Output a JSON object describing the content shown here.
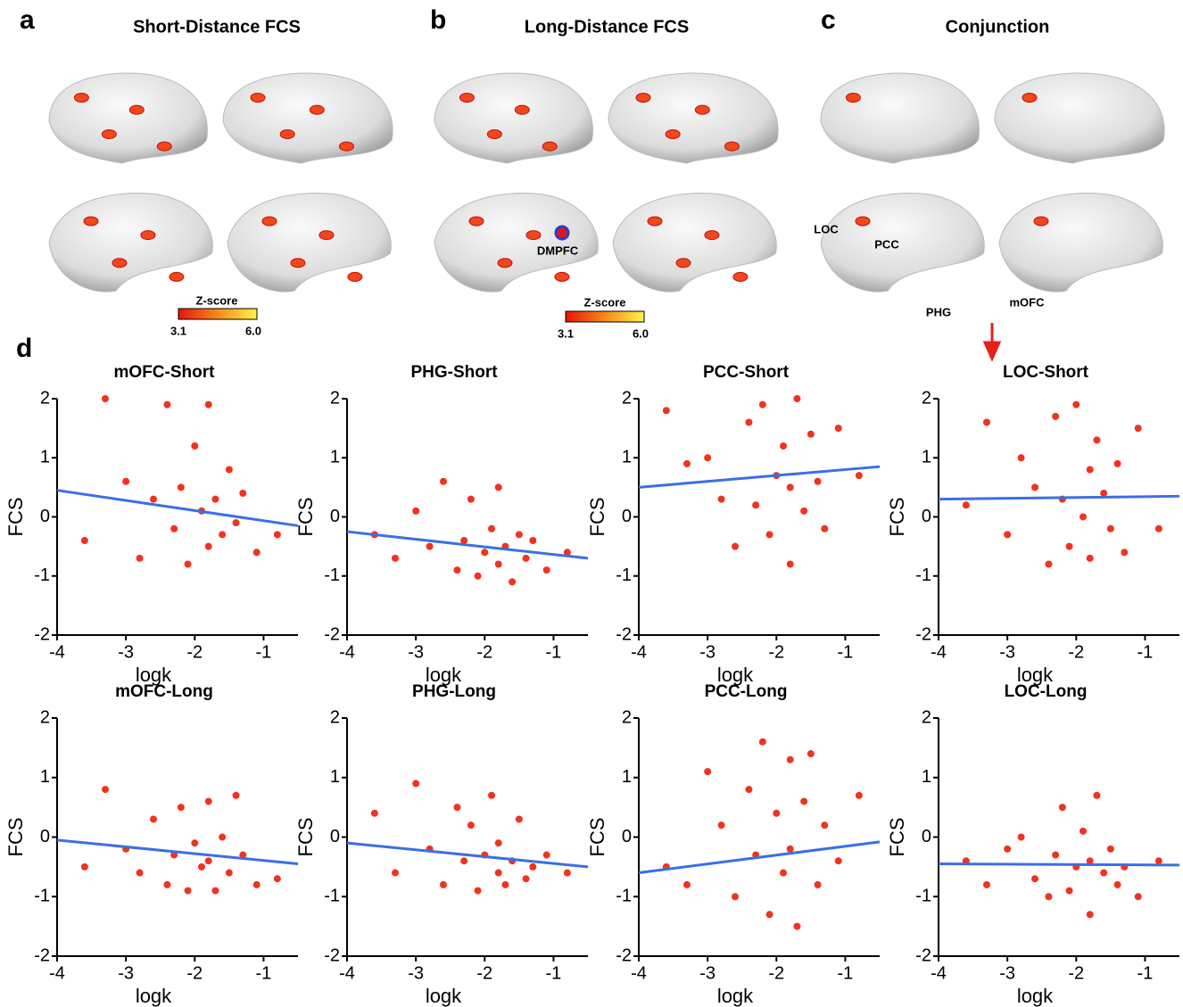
{
  "panels": [
    {
      "letter": "a",
      "title": "Short-Distance FCS",
      "colorbar": {
        "label": "Z-score",
        "ticks": [
          3.1,
          {
            "value": 6,
            "label": "6.0"
          }
        ]
      }
    },
    {
      "letter": "b",
      "title": "Long-Distance FCS",
      "colorbar": {
        "label": "Z-score",
        "ticks": [
          3.1,
          {
            "value": 6,
            "label": "6.0"
          }
        ]
      }
    },
    {
      "letter": "c",
      "title": "Conjunction"
    }
  ],
  "panel_d_letter": "d",
  "regions": [
    "DMPFC",
    "LOC",
    "PCC",
    "PHG",
    "mOFC"
  ],
  "chart_data": [
    {
      "type": "scatter",
      "title": "mOFC-Short",
      "x_label": "logk",
      "y_label": "FCS",
      "xlim": [
        -4,
        -0.5
      ],
      "ylim": [
        -2,
        2
      ],
      "xticks": [
        -4,
        -3,
        -2,
        -1
      ],
      "yticks": [
        -2,
        -1,
        0,
        1,
        2
      ],
      "points": {
        "color": "#f2321c",
        "x": [
          -3.6,
          -3.3,
          -3.0,
          -2.8,
          -2.6,
          -2.4,
          -2.3,
          -2.2,
          -2.1,
          -2.0,
          -1.9,
          -1.8,
          -1.8,
          -1.7,
          -1.6,
          -1.5,
          -1.4,
          -1.3,
          -1.1,
          -0.8
        ],
        "y": [
          -0.4,
          2.0,
          0.6,
          -0.7,
          0.3,
          1.9,
          -0.2,
          0.5,
          -0.8,
          1.2,
          0.1,
          -0.5,
          1.9,
          0.3,
          -0.3,
          0.8,
          -0.1,
          0.4,
          -0.6,
          -0.3
        ]
      },
      "fit": {
        "color": "#3a6fe6",
        "x": [
          -4,
          -0.5
        ],
        "y": [
          0.45,
          -0.15
        ]
      }
    },
    {
      "type": "scatter",
      "title": "PHG-Short",
      "x_label": "logk",
      "y_label": "FCS",
      "xlim": [
        -4,
        -0.5
      ],
      "ylim": [
        -2,
        2
      ],
      "xticks": [
        -4,
        -3,
        -2,
        -1
      ],
      "yticks": [
        -2,
        -1,
        0,
        1,
        2
      ],
      "points": {
        "color": "#f2321c",
        "x": [
          -3.6,
          -3.3,
          -3.0,
          -2.8,
          -2.6,
          -2.4,
          -2.3,
          -2.2,
          -2.1,
          -2.0,
          -1.9,
          -1.8,
          -1.8,
          -1.7,
          -1.6,
          -1.5,
          -1.4,
          -1.3,
          -1.1,
          -0.8
        ],
        "y": [
          -0.3,
          -0.7,
          0.1,
          -0.5,
          0.6,
          -0.9,
          -0.4,
          0.3,
          -1.0,
          -0.6,
          -0.2,
          -0.8,
          0.5,
          -0.5,
          -1.1,
          -0.3,
          -0.7,
          -0.4,
          -0.9,
          -0.6
        ]
      },
      "fit": {
        "color": "#3a6fe6",
        "x": [
          -4,
          -0.5
        ],
        "y": [
          -0.25,
          -0.7
        ]
      }
    },
    {
      "type": "scatter",
      "title": "PCC-Short",
      "x_label": "logk",
      "y_label": "FCS",
      "xlim": [
        -4,
        -0.5
      ],
      "ylim": [
        -2,
        2
      ],
      "xticks": [
        -4,
        -3,
        -2,
        -1
      ],
      "yticks": [
        -2,
        -1,
        0,
        1,
        2
      ],
      "points": {
        "color": "#f2321c",
        "x": [
          -3.6,
          -3.3,
          -3.0,
          -2.8,
          -2.6,
          -2.4,
          -2.3,
          -2.2,
          -2.1,
          -2.0,
          -1.9,
          -1.8,
          -1.8,
          -1.7,
          -1.6,
          -1.5,
          -1.4,
          -1.3,
          -1.1,
          -0.8
        ],
        "y": [
          1.8,
          0.9,
          1.0,
          0.3,
          -0.5,
          1.6,
          0.2,
          1.9,
          -0.3,
          0.7,
          1.2,
          -0.8,
          0.5,
          2.0,
          0.1,
          1.4,
          0.6,
          -0.2,
          1.5,
          0.7
        ]
      },
      "fit": {
        "color": "#3a6fe6",
        "x": [
          -4,
          -0.5
        ],
        "y": [
          0.5,
          0.85
        ]
      }
    },
    {
      "type": "scatter",
      "title": "LOC-Short",
      "x_label": "logk",
      "y_label": "FCS",
      "xlim": [
        -4,
        -0.5
      ],
      "ylim": [
        -2,
        2
      ],
      "xticks": [
        -4,
        -3,
        -2,
        -1
      ],
      "yticks": [
        -2,
        -1,
        0,
        1,
        2
      ],
      "points": {
        "color": "#f2321c",
        "x": [
          -3.6,
          -3.3,
          -3.0,
          -2.8,
          -2.6,
          -2.4,
          -2.3,
          -2.2,
          -2.1,
          -2.0,
          -1.9,
          -1.8,
          -1.8,
          -1.7,
          -1.6,
          -1.5,
          -1.4,
          -1.3,
          -1.1,
          -0.8
        ],
        "y": [
          0.2,
          1.6,
          -0.3,
          1.0,
          0.5,
          -0.8,
          1.7,
          0.3,
          -0.5,
          1.9,
          0.0,
          0.8,
          -0.7,
          1.3,
          0.4,
          -0.2,
          0.9,
          -0.6,
          1.5,
          -0.2
        ]
      },
      "fit": {
        "color": "#3a6fe6",
        "x": [
          -4,
          -0.5
        ],
        "y": [
          0.3,
          0.35
        ]
      }
    },
    {
      "type": "scatter",
      "title": "mOFC-Long",
      "x_label": "logk",
      "y_label": "FCS",
      "xlim": [
        -4,
        -0.5
      ],
      "ylim": [
        -2,
        2
      ],
      "xticks": [
        -4,
        -3,
        -2,
        -1
      ],
      "yticks": [
        -2,
        -1,
        0,
        1,
        2
      ],
      "points": {
        "color": "#f2321c",
        "x": [
          -3.6,
          -3.3,
          -3.0,
          -2.8,
          -2.6,
          -2.4,
          -2.3,
          -2.2,
          -2.1,
          -2.0,
          -1.9,
          -1.8,
          -1.8,
          -1.7,
          -1.6,
          -1.5,
          -1.4,
          -1.3,
          -1.1,
          -0.8
        ],
        "y": [
          -0.5,
          0.8,
          -0.2,
          -0.6,
          0.3,
          -0.8,
          -0.3,
          0.5,
          -0.9,
          -0.1,
          -0.5,
          0.6,
          -0.4,
          -0.9,
          0.0,
          -0.6,
          0.7,
          -0.3,
          -0.8,
          -0.7
        ]
      },
      "fit": {
        "color": "#3a6fe6",
        "x": [
          -4,
          -0.5
        ],
        "y": [
          -0.05,
          -0.45
        ]
      }
    },
    {
      "type": "scatter",
      "title": "PHG-Long",
      "x_label": "logk",
      "y_label": "FCS",
      "xlim": [
        -4,
        -0.5
      ],
      "ylim": [
        -2,
        2
      ],
      "xticks": [
        -4,
        -3,
        -2,
        -1
      ],
      "yticks": [
        -2,
        -1,
        0,
        1,
        2
      ],
      "points": {
        "color": "#f2321c",
        "x": [
          -3.6,
          -3.3,
          -3.0,
          -2.8,
          -2.6,
          -2.4,
          -2.3,
          -2.2,
          -2.1,
          -2.0,
          -1.9,
          -1.8,
          -1.8,
          -1.7,
          -1.6,
          -1.5,
          -1.4,
          -1.3,
          -1.1,
          -0.8
        ],
        "y": [
          0.4,
          -0.6,
          0.9,
          -0.2,
          -0.8,
          0.5,
          -0.4,
          0.2,
          -0.9,
          -0.3,
          0.7,
          -0.6,
          -0.1,
          -0.8,
          -0.4,
          0.3,
          -0.7,
          -0.5,
          -0.3,
          -0.6
        ]
      },
      "fit": {
        "color": "#3a6fe6",
        "x": [
          -4,
          -0.5
        ],
        "y": [
          -0.1,
          -0.5
        ]
      }
    },
    {
      "type": "scatter",
      "title": "PCC-Long",
      "x_label": "logk",
      "y_label": "FCS",
      "xlim": [
        -4,
        -0.5
      ],
      "ylim": [
        -2,
        2
      ],
      "xticks": [
        -4,
        -3,
        -2,
        -1
      ],
      "yticks": [
        -2,
        -1,
        0,
        1,
        2
      ],
      "points": {
        "color": "#f2321c",
        "x": [
          -3.6,
          -3.3,
          -3.0,
          -2.8,
          -2.6,
          -2.4,
          -2.3,
          -2.2,
          -2.1,
          -2.0,
          -1.9,
          -1.8,
          -1.8,
          -1.7,
          -1.6,
          -1.5,
          -1.4,
          -1.3,
          -1.1,
          -0.8
        ],
        "y": [
          -0.5,
          -0.8,
          1.1,
          0.2,
          -1.0,
          0.8,
          -0.3,
          1.6,
          -1.3,
          0.4,
          -0.6,
          1.3,
          -0.2,
          -1.5,
          0.6,
          1.4,
          -0.8,
          0.2,
          -0.4,
          0.7
        ]
      },
      "fit": {
        "color": "#3a6fe6",
        "x": [
          -4,
          -0.5
        ],
        "y": [
          -0.6,
          -0.08
        ]
      }
    },
    {
      "type": "scatter",
      "title": "LOC-Long",
      "x_label": "logk",
      "y_label": "FCS",
      "xlim": [
        -4,
        -0.5
      ],
      "ylim": [
        -2,
        2
      ],
      "xticks": [
        -4,
        -3,
        -2,
        -1
      ],
      "yticks": [
        -2,
        -1,
        0,
        1,
        2
      ],
      "points": {
        "color": "#f2321c",
        "x": [
          -3.6,
          -3.3,
          -3.0,
          -2.8,
          -2.6,
          -2.4,
          -2.3,
          -2.2,
          -2.1,
          -2.0,
          -1.9,
          -1.8,
          -1.8,
          -1.7,
          -1.6,
          -1.5,
          -1.4,
          -1.3,
          -1.1,
          -0.8
        ],
        "y": [
          -0.4,
          -0.8,
          -0.2,
          0.0,
          -0.7,
          -1.0,
          -0.3,
          0.5,
          -0.9,
          -0.5,
          0.1,
          -1.3,
          -0.4,
          0.7,
          -0.6,
          -0.2,
          -0.8,
          -0.5,
          -1.0,
          -0.4
        ]
      },
      "fit": {
        "color": "#3a6fe6",
        "x": [
          -4,
          -0.5
        ],
        "y": [
          -0.45,
          -0.47
        ]
      }
    }
  ]
}
